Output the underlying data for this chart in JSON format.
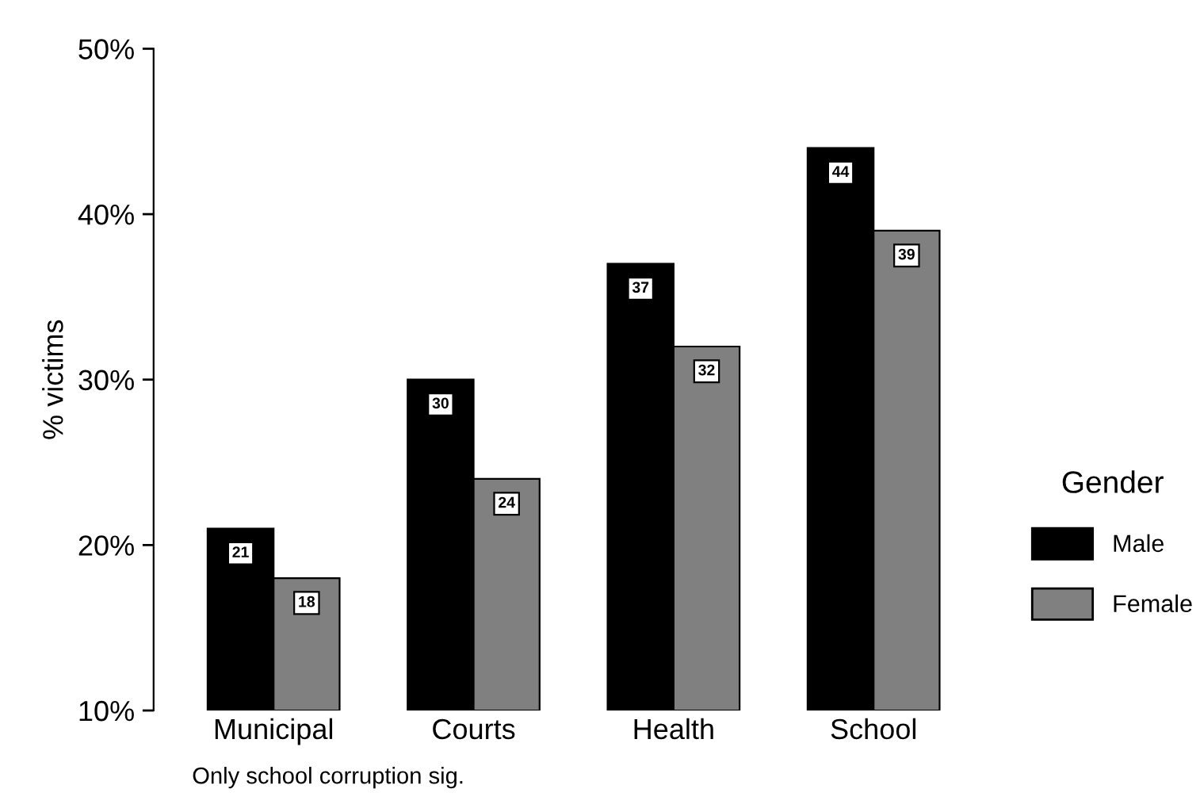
{
  "chart_data": {
    "type": "bar",
    "ylabel": "% victims",
    "legend_title": "Gender",
    "annotations": [
      "Only school corruption sig."
    ],
    "categories": [
      "Municipal",
      "Courts",
      "Health",
      "School"
    ],
    "series": [
      {
        "name": "Male",
        "color": "#000000",
        "values": [
          21,
          30,
          37,
          44
        ]
      },
      {
        "name": "Female",
        "color": "#808080",
        "values": [
          18,
          24,
          32,
          39
        ]
      }
    ],
    "ylim": [
      10,
      50
    ],
    "yticks": [
      {
        "value": 10,
        "label": "10%"
      },
      {
        "value": 20,
        "label": "20%"
      },
      {
        "value": 30,
        "label": "30%"
      },
      {
        "value": 40,
        "label": "40%"
      },
      {
        "value": 50,
        "label": "50%"
      }
    ],
    "data_labels": true,
    "legend": "right",
    "grid": false
  }
}
